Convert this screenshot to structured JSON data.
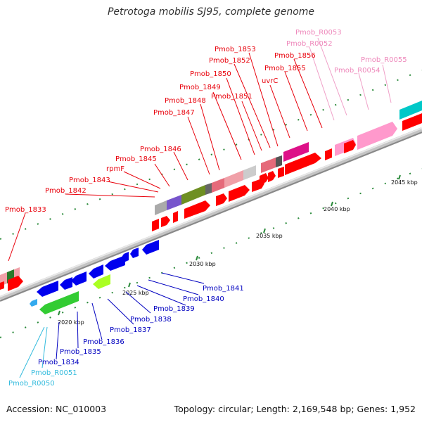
{
  "title": "Petrotoga mobilis SJ95, complete genome",
  "footer": {
    "accession": "Accession: NC_010003",
    "summary": "Topology: circular; Length: 2,169,548 bp; Genes: 1,952"
  },
  "colors": {
    "forward_label": "#e8000b",
    "reverse_label": "#0000c0",
    "rna_label": "#ee88bb",
    "trna_label": "#33bbdd",
    "backbone": "#a8a8a8"
  },
  "scale_labels": [
    "2020 kbp",
    "2025 kbp",
    "2030 kbp",
    "2035 kbp",
    "2040 kbp",
    "2045 kbp"
  ],
  "forward_labels": [
    "Pmob_1833",
    "Pmob_1842",
    "Pmob_1843",
    "rpmF",
    "Pmob_1845",
    "Pmob_1846",
    "Pmob_1847",
    "Pmob_1848",
    "Pmob_1849",
    "Pmob_1850",
    "Pmob_1851",
    "Pmob_1852",
    "Pmob_1853",
    "uvrC",
    "Pmob_1855",
    "Pmob_1856"
  ],
  "rna_labels": [
    "Pmob_R0053",
    "Pmob_R0052",
    "Pmob_R0054",
    "Pmob_R0055"
  ],
  "reverse_labels": [
    "Pmob_1841",
    "Pmob_1840",
    "Pmob_1839",
    "Pmob_1838",
    "Pmob_1837",
    "Pmob_1836",
    "Pmob_1835",
    "Pmob_1834"
  ],
  "trna_labels": [
    "Pmob_R0051",
    "Pmob_R0050"
  ]
}
